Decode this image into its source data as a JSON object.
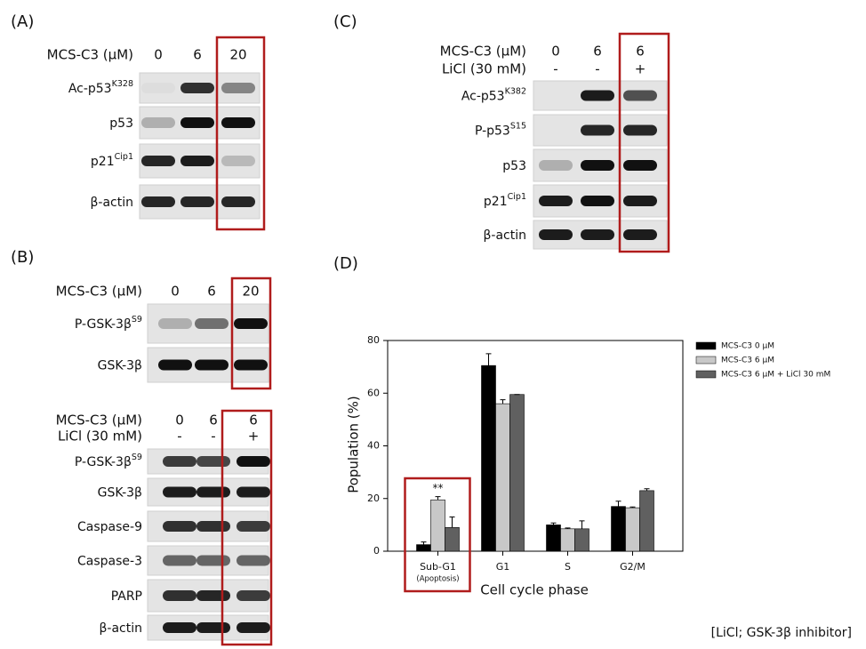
{
  "blots": [
    {
      "label": "(A)",
      "header": [
        {
          "name": "MCS-C3 (μM)",
          "lanes": [
            "0",
            "6",
            "20"
          ]
        }
      ],
      "rows": [
        {
          "text": "Ac-p53",
          "sup": "K328"
        },
        {
          "text": "p53"
        },
        {
          "text": "p21",
          "sup": "Cip1"
        },
        {
          "text": "β-actin"
        }
      ]
    },
    {
      "label": "(B)",
      "header": [
        {
          "name": "MCS-C3 (μM)",
          "lanes": [
            "0",
            "6",
            "20"
          ]
        }
      ],
      "rows": [
        {
          "text": "P-GSK-3β",
          "sup": "S9"
        },
        {
          "text": "GSK-3β"
        }
      ]
    },
    {
      "header": [
        {
          "name": "MCS-C3 (μM)",
          "lanes": [
            "0",
            "6",
            "6"
          ]
        },
        {
          "name": "LiCl (30 mM)",
          "lanes": [
            "-",
            "-",
            "+"
          ]
        }
      ],
      "rows": [
        {
          "text": "P-GSK-3β",
          "sup": "S9"
        },
        {
          "text": "GSK-3β"
        },
        {
          "text": "Caspase-9"
        },
        {
          "text": "Caspase-3"
        },
        {
          "text": "PARP"
        },
        {
          "text": "β-actin"
        }
      ]
    },
    {
      "label": "(C)",
      "header": [
        {
          "name": "MCS-C3 (μM)",
          "lanes": [
            "0",
            "6",
            "6"
          ]
        },
        {
          "name": "LiCl (30 mM)",
          "lanes": [
            "-",
            "-",
            "+"
          ]
        }
      ],
      "rows": [
        {
          "text": "Ac-p53",
          "sup": "K382"
        },
        {
          "text": "P-p53",
          "sup": "S15"
        },
        {
          "text": "p53"
        },
        {
          "text": "p21",
          "sup": "Cip1"
        },
        {
          "text": "β-actin"
        }
      ]
    }
  ],
  "chart_label": "(D)",
  "footer": "[LiCl; GSK-3β inhibitor]",
  "chart_data": {
    "type": "bar",
    "x_label": "Cell cycle phase",
    "y_label": "Population (%)",
    "categories": [
      "Sub-G1",
      "G1",
      "S",
      "G2/M"
    ],
    "category_note": "(Apoptosis)",
    "significance": "**",
    "ylim": [
      0,
      80
    ],
    "yticks": [
      0,
      20,
      40,
      60,
      80
    ],
    "legend": "right",
    "series": [
      {
        "name": "MCS-C3  0 μM",
        "color": "#000000",
        "values": [
          2.5,
          70.5,
          10,
          17
        ],
        "errors": [
          1,
          4.5,
          0.7,
          2
        ]
      },
      {
        "name": "MCS-C3  6 μM",
        "color": "#c8c8c8",
        "values": [
          19.5,
          56,
          8.5,
          16.5
        ],
        "errors": [
          1.2,
          1.5,
          0.3,
          0.3
        ]
      },
      {
        "name": "MCS-C3  6 μM + LiCl  30 mM",
        "color": "#606060",
        "values": [
          9,
          59.5,
          8.5,
          23
        ],
        "errors": [
          4,
          0,
          3,
          0.7
        ]
      }
    ]
  }
}
